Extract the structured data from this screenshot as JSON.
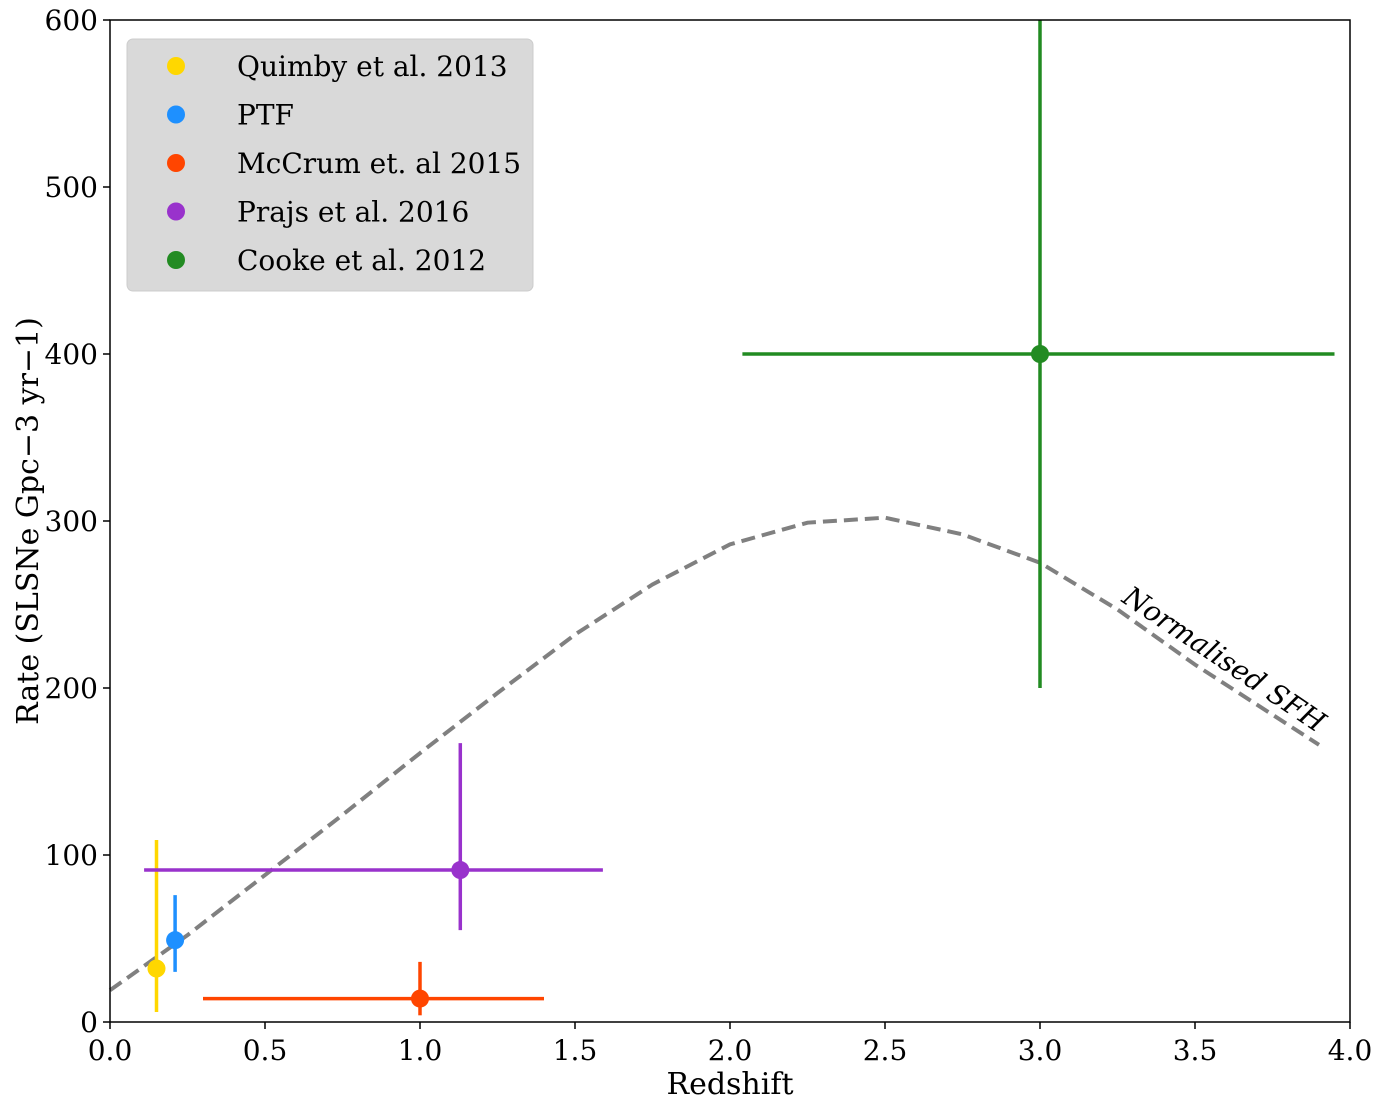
{
  "chart_data": {
    "type": "scatter",
    "xlabel": "Redshift",
    "ylabel": "Rate (SLSNe Gpc−3 yr−1)",
    "xlim": [
      0.0,
      4.0
    ],
    "ylim": [
      0,
      600
    ],
    "x_ticks": [
      "0.0",
      "0.5",
      "1.0",
      "1.5",
      "2.0",
      "2.5",
      "3.0",
      "3.5",
      "4.0"
    ],
    "y_ticks": [
      "0",
      "100",
      "200",
      "300",
      "400",
      "500",
      "600"
    ],
    "grid": false,
    "legend_position": "top-left",
    "series": [
      {
        "name": "Quimby et al. 2013",
        "color": "#FFD700",
        "x": 0.15,
        "y": 32,
        "x_err": [
          0,
          0
        ],
        "y_err": [
          26,
          77
        ]
      },
      {
        "name": "PTF",
        "color": "#1E90FF",
        "x": 0.21,
        "y": 49,
        "x_err": [
          0,
          0
        ],
        "y_err": [
          19,
          27
        ]
      },
      {
        "name": "McCrum et. al 2015",
        "color": "#FF4500",
        "x": 1.0,
        "y": 14,
        "x_err": [
          0.7,
          0.4
        ],
        "y_err": [
          10,
          22
        ]
      },
      {
        "name": "Prajs et al. 2016",
        "color": "#9932CC",
        "x": 1.13,
        "y": 91,
        "x_err": [
          1.02,
          0.46
        ],
        "y_err": [
          36,
          76
        ]
      },
      {
        "name": "Cooke et al. 2012",
        "color": "#228B22",
        "x": 3.0,
        "y": 400,
        "x_err": [
          0.96,
          0.95
        ],
        "y_err": [
          200,
          200
        ]
      }
    ],
    "curve": {
      "name": "Normalised SFH",
      "style": "dashed",
      "color": "#808080",
      "x": [
        0.0,
        0.25,
        0.5,
        0.75,
        1.0,
        1.25,
        1.5,
        1.75,
        2.0,
        2.25,
        2.5,
        2.75,
        3.0,
        3.25,
        3.5,
        3.75,
        3.9
      ],
      "y": [
        19,
        52,
        88,
        124,
        161,
        197,
        232,
        262,
        286,
        299,
        302,
        292,
        275,
        247,
        214,
        184,
        166
      ]
    }
  }
}
